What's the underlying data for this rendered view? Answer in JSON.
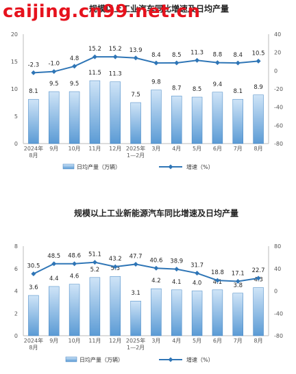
{
  "watermark": "caijing.cn99.net.cn",
  "chart_data": [
    {
      "type": "bar",
      "title": "规模以上工业汽车同比增速及日均产量",
      "categories": [
        "2024年\n8月",
        "9月",
        "10月",
        "11月",
        "12月",
        "2025年\n1—2月",
        "3月",
        "4月",
        "5月",
        "6月",
        "7月",
        "8月"
      ],
      "series": [
        {
          "name": "日均产量（万辆）",
          "type": "bar",
          "axis": "left",
          "values": [
            8.1,
            9.5,
            9.5,
            11.5,
            11.3,
            7.5,
            9.8,
            8.7,
            8.5,
            9.4,
            8.1,
            8.9
          ]
        },
        {
          "name": "增速（%）",
          "type": "line",
          "axis": "right",
          "values": [
            -2.3,
            -1.0,
            4.8,
            15.2,
            15.2,
            13.9,
            8.4,
            8.5,
            11.3,
            8.8,
            8.4,
            10.5
          ]
        }
      ],
      "left_axis": {
        "ylim": [
          0,
          20
        ],
        "ticks": [
          0,
          5,
          10,
          15,
          20
        ]
      },
      "right_axis": {
        "ylim": [
          -80,
          40
        ],
        "ticks": [
          -80,
          -60,
          -40,
          -20,
          0,
          20,
          40
        ]
      },
      "grid": false,
      "legend_position": "bottom"
    },
    {
      "type": "bar",
      "title": "规模以上工业新能源汽车同比增速及日均产量",
      "categories": [
        "2024年\n8月",
        "9月",
        "10月",
        "11月",
        "12月",
        "2025年\n1—2月",
        "3月",
        "4月",
        "5月",
        "6月",
        "7月",
        "8月"
      ],
      "series": [
        {
          "name": "日均产量（万辆）",
          "type": "bar",
          "axis": "left",
          "values": [
            3.6,
            4.4,
            4.6,
            5.2,
            5.3,
            3.1,
            4.2,
            4.1,
            4.0,
            4.1,
            3.8,
            4.3
          ]
        },
        {
          "name": "增速（%）",
          "type": "line",
          "axis": "right",
          "values": [
            30.5,
            48.5,
            48.6,
            51.1,
            43.2,
            47.7,
            40.6,
            38.9,
            31.7,
            18.8,
            17.1,
            22.7
          ]
        }
      ],
      "left_axis": {
        "ylim": [
          0,
          8
        ],
        "ticks": [
          0,
          2,
          4,
          6,
          8
        ]
      },
      "right_axis": {
        "ylim": [
          -80,
          80
        ],
        "ticks": [
          -80,
          -40,
          0,
          40,
          80
        ]
      },
      "grid": false,
      "legend_position": "bottom"
    }
  ],
  "colors": {
    "bar_top": "#cfe4f7",
    "bar_bottom": "#5b9bd5",
    "bar_stroke": "#3a7fc0",
    "line": "#2e75b6",
    "axis": "#bbbbbb"
  }
}
